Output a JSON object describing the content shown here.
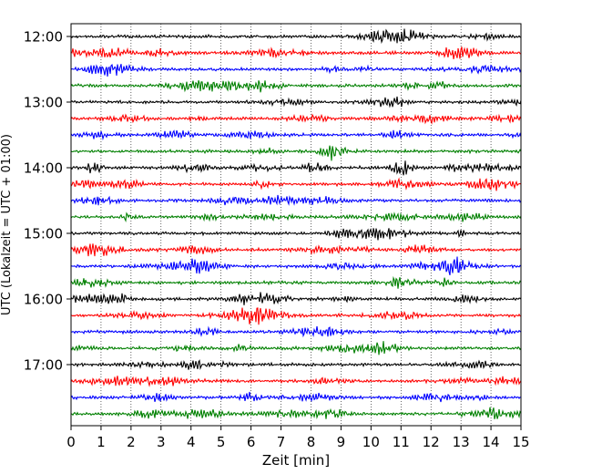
{
  "chart_data": {
    "type": "line",
    "title": "",
    "xlabel": "Zeit  [min]",
    "ylabel": "UTC (Lokalzeit = UTC + 01:00)",
    "xlim": [
      0,
      15
    ],
    "x_ticks": [
      "0",
      "1",
      "2",
      "3",
      "4",
      "5",
      "6",
      "7",
      "8",
      "9",
      "10",
      "11",
      "12",
      "13",
      "14",
      "15"
    ],
    "y_ticks": [
      "12:00",
      "13:00",
      "14:00",
      "15:00",
      "16:00",
      "17:00"
    ],
    "grid": "vertical dotted lines at each minute",
    "trace_interval_minutes": 15,
    "trace_start_times": [
      "12:00",
      "12:15",
      "12:30",
      "12:45",
      "13:00",
      "13:15",
      "13:30",
      "13:45",
      "14:00",
      "14:15",
      "14:30",
      "14:45",
      "15:00",
      "15:15",
      "15:30",
      "15:45",
      "16:00",
      "16:15",
      "16:30",
      "16:45",
      "17:00",
      "17:15",
      "17:30",
      "17:45"
    ],
    "trace_colors": [
      "#000000",
      "#ff0000",
      "#0000ff",
      "#008000"
    ]
  }
}
